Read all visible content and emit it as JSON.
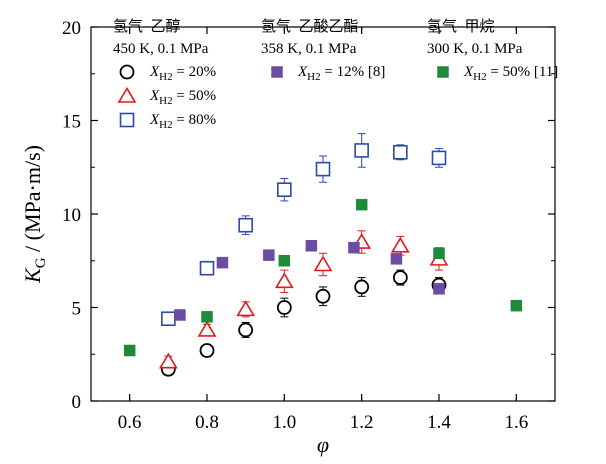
{
  "chart_data": {
    "type": "scatter",
    "xlabel": "φ",
    "ylabel": "K_G / (MPa·m/s)",
    "xlim": [
      0.5,
      1.7
    ],
    "ylim": [
      0,
      20
    ],
    "xticks": [
      0.6,
      0.8,
      1.0,
      1.2,
      1.4,
      1.6
    ],
    "yticks": [
      0,
      5,
      10,
      15,
      20
    ],
    "grid": false,
    "legend_groups": [
      {
        "title": "氢气–乙醇",
        "condition": "450 K,  0.1 MPa"
      },
      {
        "title": "氢气–乙酸乙酯",
        "condition": "358 K,  0.1 MPa"
      },
      {
        "title": "氢气–甲烷",
        "condition": "300 K,  0.1 MPa"
      }
    ],
    "series": [
      {
        "name": "X_H2 = 20%",
        "marker": "circle-open",
        "color": "#000000",
        "x": [
          0.7,
          0.8,
          0.9,
          1.0,
          1.1,
          1.2,
          1.3,
          1.4
        ],
        "y": [
          1.7,
          2.7,
          3.8,
          5.0,
          5.6,
          6.1,
          6.6,
          6.2
        ],
        "err": [
          0.2,
          0.2,
          0.4,
          0.5,
          0.5,
          0.5,
          0.4,
          0.4
        ]
      },
      {
        "name": "X_H2 = 50%",
        "marker": "triangle-open",
        "color": "#e31a1c",
        "x": [
          0.7,
          0.8,
          0.9,
          1.0,
          1.1,
          1.2,
          1.3,
          1.4
        ],
        "y": [
          2.1,
          3.8,
          4.9,
          6.4,
          7.3,
          8.5,
          8.3,
          7.6
        ],
        "err": [
          0.3,
          0.3,
          0.4,
          0.6,
          0.6,
          0.6,
          0.5,
          0.6
        ]
      },
      {
        "name": "X_H2 = 80%",
        "marker": "square-open",
        "color": "#2b4ba8",
        "x": [
          0.7,
          0.8,
          0.9,
          1.0,
          1.1,
          1.2,
          1.3,
          1.4
        ],
        "y": [
          4.4,
          7.1,
          9.4,
          11.3,
          12.4,
          13.4,
          13.3,
          13.0
        ],
        "err": [
          0.2,
          0.3,
          0.5,
          0.6,
          0.7,
          0.9,
          0.4,
          0.5
        ]
      },
      {
        "name": "X_H2 = 12% [8]",
        "marker": "square-filled",
        "color": "#6a4ca3",
        "x": [
          0.73,
          0.84,
          0.96,
          1.07,
          1.18,
          1.29,
          1.4
        ],
        "y": [
          4.6,
          7.4,
          7.8,
          8.3,
          8.2,
          7.6,
          6.0
        ]
      },
      {
        "name": "X_H2 = 50% [11]",
        "marker": "square-filled",
        "color": "#1f8a3a",
        "x": [
          0.6,
          0.8,
          1.0,
          1.2,
          1.4,
          1.6
        ],
        "y": [
          2.7,
          4.5,
          7.5,
          10.5,
          7.9,
          5.1
        ]
      }
    ]
  },
  "colors": {
    "ethanol_20": "#000000",
    "ethanol_50": "#e31a1c",
    "ethanol_80": "#2b4ba8",
    "ethyl_acetate": "#6a4ca3",
    "methane": "#1f8a3a"
  }
}
